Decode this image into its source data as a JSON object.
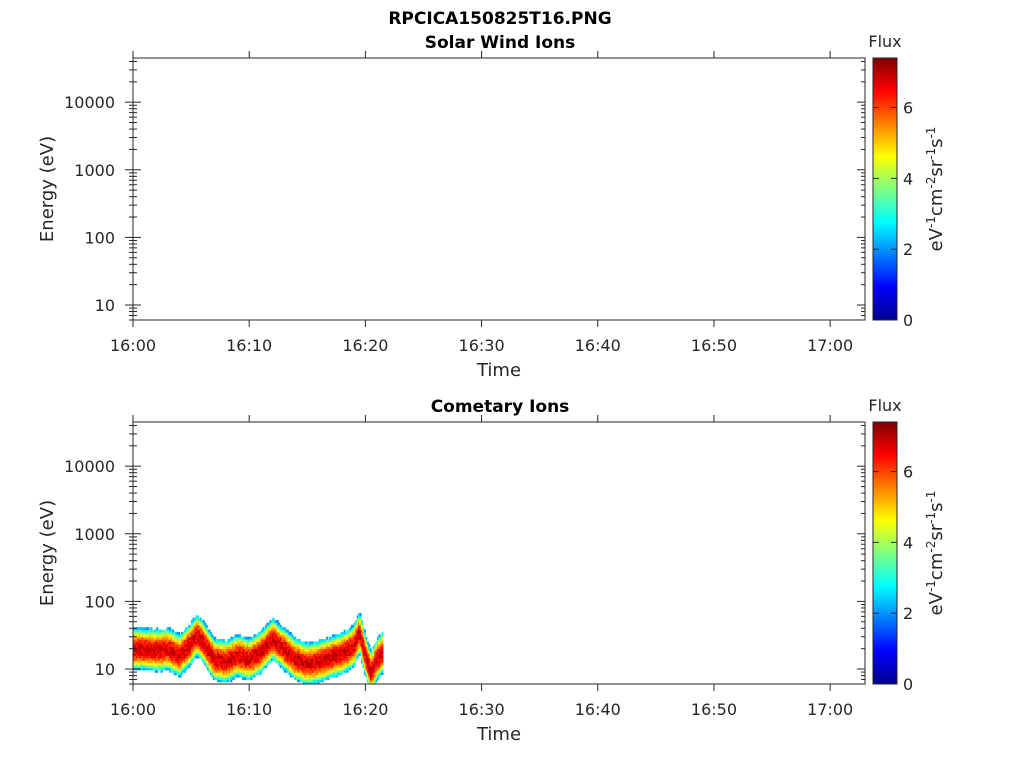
{
  "figure_title": "RPCICA150825T16.PNG",
  "chart_data": [
    {
      "type": "heatmap",
      "title": "Solar Wind Ions",
      "xlabel": "Time",
      "ylabel": "Energy (eV)",
      "x_ticks": [
        "16:00",
        "16:10",
        "16:20",
        "16:30",
        "16:40",
        "16:50",
        "17:00"
      ],
      "x_range": [
        "16:00",
        "17:03"
      ],
      "y_scale": "log",
      "y_ticks": [
        "10",
        "100",
        "1000",
        "10000"
      ],
      "y_range": [
        6,
        45000
      ],
      "colorbar": {
        "title": "Flux",
        "label": "eV-1cm-2sr-1s-1",
        "ticks": [
          "0",
          "2",
          "4",
          "6"
        ],
        "range": [
          0,
          7.4
        ],
        "colormap": "jet"
      },
      "data": []
    },
    {
      "type": "heatmap",
      "title": "Cometary Ions",
      "xlabel": "Time",
      "ylabel": "Energy (eV)",
      "x_ticks": [
        "16:00",
        "16:10",
        "16:20",
        "16:30",
        "16:40",
        "16:50",
        "17:00"
      ],
      "x_range": [
        "16:00",
        "17:03"
      ],
      "y_scale": "log",
      "y_ticks": [
        "10",
        "100",
        "1000",
        "10000"
      ],
      "y_range": [
        6,
        45000
      ],
      "colorbar": {
        "title": "Flux",
        "label": "eV-1cm-2sr-1s-1",
        "ticks": [
          "0",
          "2",
          "4",
          "6"
        ],
        "range": [
          0,
          7.4
        ],
        "colormap": "jet"
      },
      "data_time_range": [
        "16:00",
        "16:21.5"
      ],
      "peak_energy_trace_eV": [
        {
          "t": "16:00",
          "e": 20
        },
        {
          "t": "16:01",
          "e": 20
        },
        {
          "t": "16:02",
          "e": 19
        },
        {
          "t": "16:03",
          "e": 20
        },
        {
          "t": "16:04",
          "e": 16
        },
        {
          "t": "16:05",
          "e": 24
        },
        {
          "t": "16:05.5",
          "e": 32
        },
        {
          "t": "16:06",
          "e": 26
        },
        {
          "t": "16:07",
          "e": 14
        },
        {
          "t": "16:08",
          "e": 13
        },
        {
          "t": "16:09",
          "e": 16
        },
        {
          "t": "16:10",
          "e": 14
        },
        {
          "t": "16:11",
          "e": 18
        },
        {
          "t": "16:12",
          "e": 28
        },
        {
          "t": "16:13",
          "e": 20
        },
        {
          "t": "16:14",
          "e": 14
        },
        {
          "t": "16:15",
          "e": 12
        },
        {
          "t": "16:16",
          "e": 13
        },
        {
          "t": "16:17",
          "e": 15
        },
        {
          "t": "16:18",
          "e": 17
        },
        {
          "t": "16:19",
          "e": 22
        },
        {
          "t": "16:19.5",
          "e": 35
        },
        {
          "t": "16:20",
          "e": 16
        },
        {
          "t": "16:20.5",
          "e": 9
        },
        {
          "t": "16:21",
          "e": 14
        },
        {
          "t": "16:21.5",
          "e": 18
        }
      ]
    }
  ]
}
